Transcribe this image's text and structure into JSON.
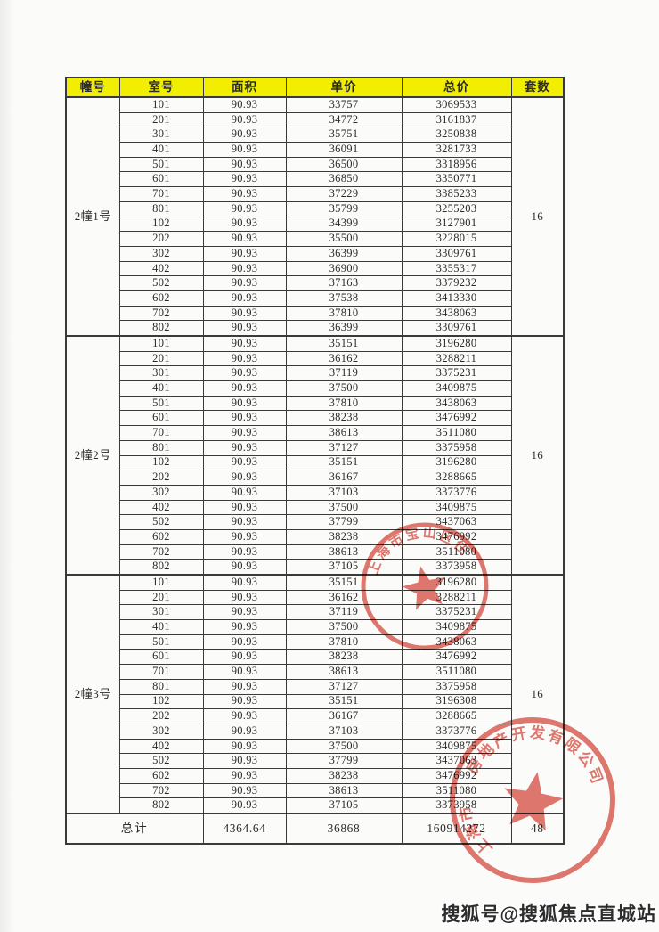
{
  "page": {
    "watermark": "搜狐号@搜狐焦点直城站",
    "paper_color": "#fbfbf9",
    "header_yellow": "#f2ee00",
    "seal_red": "#d6453a"
  },
  "table": {
    "headers": [
      "幢号",
      "室号",
      "面积",
      "单价",
      "总价",
      "套数"
    ],
    "sections": [
      {
        "building": "2幢1号",
        "unit_count": "16",
        "rows": [
          [
            "101",
            "90.93",
            "33757",
            "3069533"
          ],
          [
            "201",
            "90.93",
            "34772",
            "3161837"
          ],
          [
            "301",
            "90.93",
            "35751",
            "3250838"
          ],
          [
            "401",
            "90.93",
            "36091",
            "3281733"
          ],
          [
            "501",
            "90.93",
            "36500",
            "3318956"
          ],
          [
            "601",
            "90.93",
            "36850",
            "3350771"
          ],
          [
            "701",
            "90.93",
            "37229",
            "3385233"
          ],
          [
            "801",
            "90.93",
            "35799",
            "3255203"
          ],
          [
            "102",
            "90.93",
            "34399",
            "3127901"
          ],
          [
            "202",
            "90.93",
            "35500",
            "3228015"
          ],
          [
            "302",
            "90.93",
            "36399",
            "3309761"
          ],
          [
            "402",
            "90.93",
            "36900",
            "3355317"
          ],
          [
            "502",
            "90.93",
            "37163",
            "3379232"
          ],
          [
            "602",
            "90.93",
            "37538",
            "3413330"
          ],
          [
            "702",
            "90.93",
            "37810",
            "3438063"
          ],
          [
            "802",
            "90.93",
            "36399",
            "3309761"
          ]
        ]
      },
      {
        "building": "2幢2号",
        "unit_count": "16",
        "rows": [
          [
            "101",
            "90.93",
            "35151",
            "3196280"
          ],
          [
            "201",
            "90.93",
            "36162",
            "3288211"
          ],
          [
            "301",
            "90.93",
            "37119",
            "3375231"
          ],
          [
            "401",
            "90.93",
            "37500",
            "3409875"
          ],
          [
            "501",
            "90.93",
            "37810",
            "3438063"
          ],
          [
            "601",
            "90.93",
            "38238",
            "3476992"
          ],
          [
            "701",
            "90.93",
            "38613",
            "3511080"
          ],
          [
            "801",
            "90.93",
            "37127",
            "3375958"
          ],
          [
            "102",
            "90.93",
            "35151",
            "3196280"
          ],
          [
            "202",
            "90.93",
            "36167",
            "3288665"
          ],
          [
            "302",
            "90.93",
            "37103",
            "3373776"
          ],
          [
            "402",
            "90.93",
            "37500",
            "3409875"
          ],
          [
            "502",
            "90.93",
            "37799",
            "3437063"
          ],
          [
            "602",
            "90.93",
            "38238",
            "3476992"
          ],
          [
            "702",
            "90.93",
            "38613",
            "3511080"
          ],
          [
            "802",
            "90.93",
            "37105",
            "3373958"
          ]
        ]
      },
      {
        "building": "2幢3号",
        "unit_count": "16",
        "rows": [
          [
            "101",
            "90.93",
            "35151",
            "3196280"
          ],
          [
            "201",
            "90.93",
            "36162",
            "3288211"
          ],
          [
            "301",
            "90.93",
            "37119",
            "3375231"
          ],
          [
            "401",
            "90.93",
            "37500",
            "3409875"
          ],
          [
            "501",
            "90.93",
            "37810",
            "3438063"
          ],
          [
            "601",
            "90.93",
            "38238",
            "3476992"
          ],
          [
            "701",
            "90.93",
            "38613",
            "3511080"
          ],
          [
            "801",
            "90.93",
            "37127",
            "3375958"
          ],
          [
            "102",
            "90.93",
            "35151",
            "3196308"
          ],
          [
            "202",
            "90.93",
            "36167",
            "3288665"
          ],
          [
            "302",
            "90.93",
            "37103",
            "3373776"
          ],
          [
            "402",
            "90.93",
            "37500",
            "3409875"
          ],
          [
            "502",
            "90.93",
            "37799",
            "3437063"
          ],
          [
            "602",
            "90.93",
            "38238",
            "3476992"
          ],
          [
            "702",
            "90.93",
            "38613",
            "3511080"
          ],
          [
            "802",
            "90.93",
            "37105",
            "3373958"
          ]
        ]
      }
    ],
    "total": {
      "label": "总计",
      "area": "4364.64",
      "unit_price": "36868",
      "total_price": "160914272",
      "count": "48"
    }
  },
  "stamps": [
    {
      "shape": "circular-seal-with-star",
      "arc_text": "上海市宝山区住"
    },
    {
      "shape": "circular-seal-with-star",
      "arc_text_left": "上海市",
      "arc_text_top": "房地产开发有限公司"
    }
  ]
}
